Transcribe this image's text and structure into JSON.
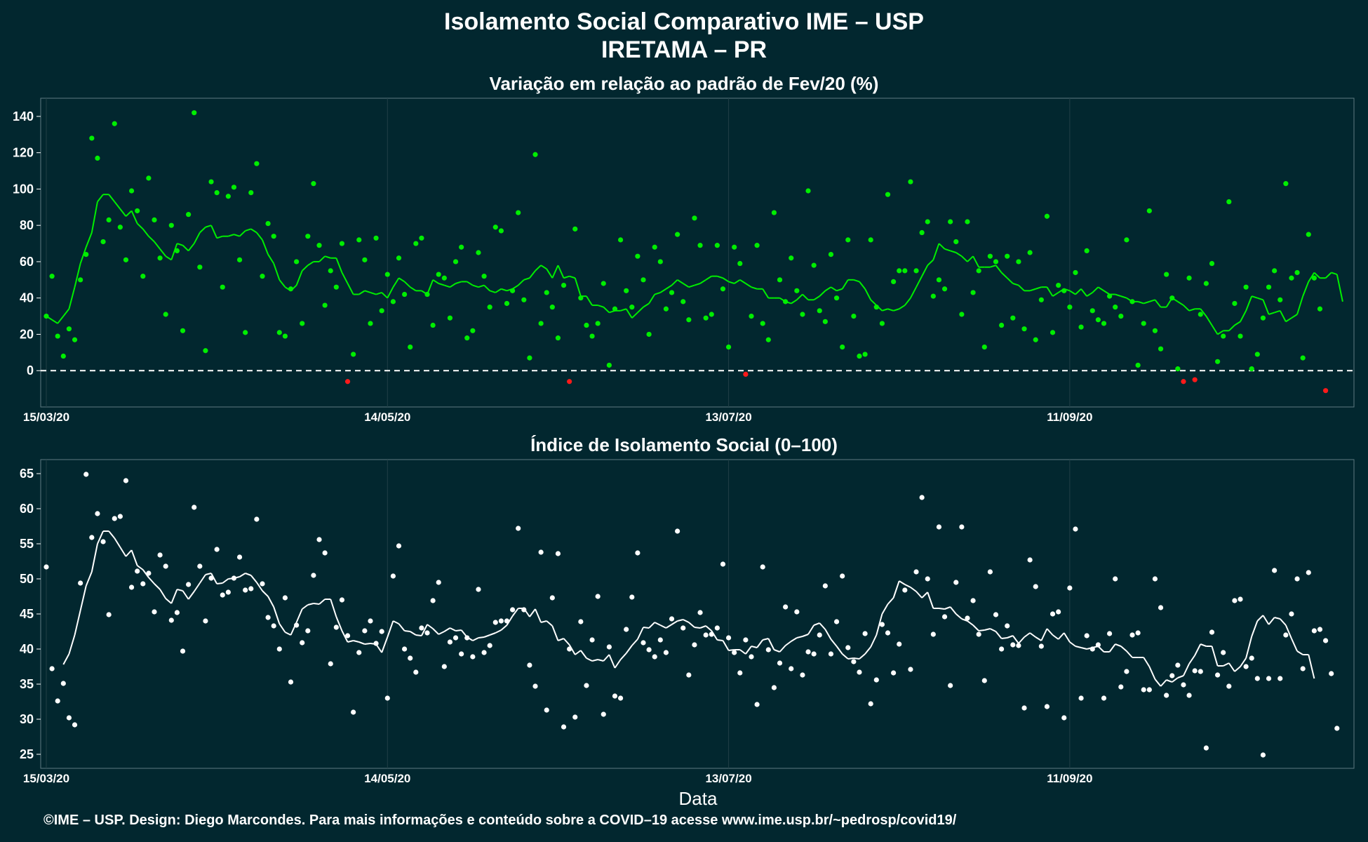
{
  "title": "Isolamento Social Comparativo IME – USP",
  "subtitle": "IRETAMA – PR",
  "xlabel": "Data",
  "footer": "©IME – USP. Design: Diego Marcondes. Para mais informações e conteúdo sobre a COVID–19 acesse www.ime.usp.br/~pedrosp/covid19/",
  "colors": {
    "background": "#02272f",
    "positive": "#00ee00",
    "negative": "#ff1a1a",
    "index": "#ffffff",
    "grid": "#213f46"
  },
  "chart_data": [
    {
      "type": "scatter",
      "title": "Variação em relação ao padrão de Fev/20 (%)",
      "xticks": [
        "15/03/20",
        "14/05/20",
        "13/07/20",
        "11/09/20"
      ],
      "xtick_days": [
        0,
        60,
        120,
        180
      ],
      "xlim": [
        0,
        229
      ],
      "ylim": [
        -20,
        150
      ],
      "yticks": [
        0,
        20,
        40,
        60,
        80,
        100,
        120,
        140
      ],
      "reference_line": 0,
      "points": [
        30,
        52,
        19,
        8,
        23,
        17,
        50,
        64,
        128,
        117,
        71,
        83,
        136,
        79,
        61,
        99,
        88,
        52,
        106,
        83,
        62,
        31,
        80,
        66,
        22,
        86,
        142,
        57,
        11,
        104,
        98,
        46,
        96,
        101,
        61,
        21,
        98,
        114,
        52,
        81,
        74,
        21,
        19,
        45,
        60,
        26,
        74,
        103,
        69,
        36,
        55,
        46,
        70,
        -6,
        9,
        72,
        61,
        26,
        73,
        33,
        53,
        38,
        62,
        42,
        13,
        70,
        73,
        42,
        25,
        53,
        51,
        29,
        60,
        68,
        18,
        22,
        65,
        52,
        35,
        79,
        77,
        37,
        44,
        87,
        39,
        7,
        119,
        26,
        43,
        35,
        18,
        47,
        -6,
        78,
        40,
        25,
        19,
        26,
        48,
        3,
        34,
        72,
        44,
        35,
        63,
        50,
        20,
        68,
        60,
        34,
        43,
        75,
        38,
        28,
        84,
        69,
        29,
        31,
        69,
        45,
        13,
        68,
        59,
        -2,
        30,
        69,
        26,
        17,
        87,
        50,
        38,
        62,
        44,
        31,
        99,
        58,
        33,
        27,
        64,
        40,
        13,
        72,
        30,
        8,
        9,
        72,
        35,
        26,
        97,
        49,
        55,
        55,
        104,
        55,
        76,
        82,
        41,
        50,
        45,
        82,
        71,
        31,
        82,
        43,
        55,
        13,
        63,
        60,
        25,
        63,
        29,
        60,
        23,
        65,
        17,
        39,
        85,
        21,
        47,
        44,
        35,
        54,
        24,
        66,
        33,
        28,
        26,
        41,
        35,
        30,
        72,
        38,
        3,
        26,
        88,
        22,
        12,
        53,
        40,
        1,
        -6,
        51,
        -5,
        31,
        48,
        59,
        5,
        19,
        93,
        37,
        19,
        46,
        1,
        9,
        29,
        46,
        55,
        39,
        103,
        51,
        54,
        7,
        75,
        51,
        34,
        -11
      ],
      "moving_average": [
        30,
        28,
        26,
        30,
        34,
        46,
        59,
        68,
        76,
        93,
        97,
        97,
        93,
        89,
        85,
        88,
        81,
        78,
        74,
        71,
        67,
        63,
        61,
        70,
        69,
        66,
        70,
        76,
        79,
        80,
        73,
        74,
        74,
        75,
        74,
        77,
        78,
        76,
        72,
        64,
        59,
        50,
        46,
        44,
        47,
        55,
        58,
        60,
        60,
        63,
        62,
        62,
        54,
        48,
        42,
        42,
        44,
        43,
        42,
        43,
        40,
        46,
        51,
        49,
        46,
        44,
        44,
        42,
        50,
        48,
        47,
        46,
        48,
        49,
        49,
        47,
        46,
        47,
        44,
        43,
        45,
        44,
        45,
        47,
        50,
        51,
        55,
        58,
        56,
        51,
        58,
        51,
        52,
        51,
        41,
        41,
        36,
        36,
        35,
        32,
        33,
        33,
        34,
        29,
        32,
        35,
        37,
        42,
        43,
        45,
        47,
        50,
        48,
        46,
        47,
        48,
        50,
        52,
        52,
        51,
        49,
        48,
        50,
        48,
        46,
        45,
        45,
        40,
        40,
        40,
        38,
        37,
        39,
        42,
        39,
        39,
        41,
        44,
        46,
        44,
        45,
        50,
        50,
        49,
        45,
        39,
        36,
        33,
        34,
        33,
        34,
        36,
        40,
        46,
        52,
        58,
        61,
        70,
        67,
        66,
        65,
        63,
        60,
        63,
        57,
        57,
        57,
        58,
        54,
        51,
        48,
        47,
        44,
        44,
        45,
        46,
        46,
        41,
        43,
        45,
        44,
        42,
        45,
        41,
        43,
        46,
        44,
        42,
        42,
        41,
        40,
        38,
        38,
        37,
        38,
        39,
        35,
        35,
        40,
        38,
        36,
        33,
        34,
        34,
        30,
        25,
        20,
        22,
        22,
        25,
        27,
        33,
        41,
        40,
        39,
        31,
        32,
        33,
        27,
        29,
        31,
        41,
        49,
        54,
        51,
        51,
        54,
        53,
        38
      ]
    },
    {
      "type": "scatter",
      "title": "Índice de Isolamento Social (0–100)",
      "xticks": [
        "15/03/20",
        "14/05/20",
        "13/07/20",
        "11/09/20"
      ],
      "xtick_days": [
        0,
        60,
        120,
        180
      ],
      "xlim": [
        0,
        229
      ],
      "ylim": [
        23,
        67
      ],
      "yticks": [
        25,
        30,
        35,
        40,
        45,
        50,
        55,
        60,
        65
      ],
      "points": [
        51.7,
        37.2,
        32.6,
        35.1,
        30.2,
        29.2,
        49.4,
        64.9,
        55.9,
        59.3,
        55.3,
        44.9,
        58.6,
        58.9,
        64.0,
        48.8,
        51.1,
        49.3,
        50.8,
        45.3,
        53.4,
        51.8,
        44.1,
        45.2,
        39.7,
        49.2,
        60.2,
        51.8,
        44.0,
        50.1,
        54.2,
        47.7,
        48.1,
        50.1,
        53.1,
        48.4,
        48.6,
        58.5,
        49.3,
        44.5,
        43.3,
        40.0,
        47.3,
        35.3,
        43.4,
        40.9,
        42.6,
        50.5,
        55.6,
        53.7,
        37.9,
        43.1,
        47.0,
        41.9,
        31.0,
        39.5,
        42.6,
        44.0,
        40.8,
        42.5,
        33.0,
        50.4,
        54.7,
        40.0,
        38.7,
        36.7,
        43.0,
        42.3,
        46.9,
        49.5,
        37.5,
        41.0,
        41.6,
        39.3,
        41.6,
        38.9,
        48.5,
        39.5,
        40.5,
        43.8,
        44.0,
        44.0,
        45.6,
        57.2,
        45.6,
        37.7,
        34.7,
        53.8,
        31.3,
        47.3,
        53.6,
        28.9,
        40.0,
        30.3,
        43.9,
        34.8,
        41.3,
        47.5,
        30.7,
        40.3,
        33.3,
        33.0,
        42.8,
        47.4,
        53.7,
        40.9,
        39.9,
        38.9,
        41.3,
        39.5,
        44.3,
        56.8,
        43.0,
        36.3,
        40.6,
        45.2,
        42.0,
        42.1,
        43.0,
        52.1,
        41.6,
        39.5,
        36.6,
        41.3,
        38.9,
        32.1,
        51.7,
        39.9,
        34.5,
        38.0,
        46.0,
        37.2,
        45.3,
        36.3,
        39.6,
        39.3,
        42.0,
        49.0,
        39.3,
        43.9,
        50.4,
        40.2,
        38.2,
        36.7,
        42.2,
        32.2,
        35.6,
        43.5,
        42.3,
        36.6,
        40.7,
        48.4,
        37.1,
        51.0,
        61.6,
        50.0,
        42.1,
        57.4,
        44.6,
        34.8,
        49.5,
        57.4,
        44.4,
        46.9,
        42.1,
        35.5,
        51.0,
        44.9,
        40.0,
        43.3,
        40.6,
        40.5,
        31.6,
        52.7,
        48.9,
        40.4,
        31.8,
        45.0,
        45.3,
        30.2,
        48.7,
        57.1,
        33.0,
        41.9,
        40.0,
        40.6,
        33.0,
        42.2,
        50.0,
        34.6,
        36.8,
        42.0,
        42.3,
        34.2,
        34.2,
        50.0,
        45.9,
        33.4,
        36.2,
        37.7,
        34.9,
        33.4,
        36.9,
        36.8,
        25.9,
        42.4,
        36.3,
        39.5,
        34.7,
        46.9,
        47.1,
        37.5,
        38.7,
        35.8,
        24.9,
        35.8,
        51.2,
        35.8,
        42.0,
        45.0,
        50.0,
        37.2,
        50.9,
        42.6,
        42.8,
        41.2,
        36.5,
        28.7
      ],
      "moving_average": [
        null,
        null,
        null,
        37.8,
        39.3,
        42.0,
        45.5,
        49.0,
        51.0,
        55.0,
        56.8,
        56.8,
        55.8,
        54.5,
        53.2,
        54.1,
        51.9,
        51.3,
        50.2,
        49.3,
        48.5,
        47.2,
        46.5,
        48.5,
        48.3,
        47.1,
        48.2,
        49.4,
        50.6,
        50.8,
        49.3,
        49.4,
        50.0,
        50.1,
        50.3,
        50.8,
        50.5,
        49.5,
        48.3,
        47.5,
        46.0,
        43.6,
        42.4,
        42.0,
        43.8,
        45.7,
        46.3,
        46.5,
        46.4,
        47.1,
        47.1,
        44.6,
        42.6,
        41.0,
        41.2,
        41.0,
        40.7,
        40.8,
        40.7,
        39.5,
        41.7,
        44.0,
        43.6,
        42.6,
        42.5,
        42.0,
        41.9,
        43.5,
        42.9,
        42.1,
        42.5,
        43.0,
        42.6,
        42.7,
        41.7,
        41.2,
        41.6,
        41.7,
        42.0,
        42.3,
        42.7,
        43.4,
        44.7,
        45.8,
        45.8,
        44.6,
        45.7,
        43.8,
        44.0,
        43.3,
        41.2,
        41.5,
        40.6,
        39.2,
        39.8,
        38.7,
        38.3,
        38.5,
        38.3,
        39.2,
        37.3,
        38.5,
        39.4,
        40.5,
        41.4,
        43.1,
        43.0,
        43.8,
        43.4,
        43.0,
        43.5,
        44.0,
        44.2,
        43.8,
        43.1,
        43.0,
        43.3,
        42.6,
        41.3,
        41.2,
        39.8,
        39.9,
        39.9,
        39.3,
        40.4,
        40.2,
        41.3,
        41.5,
        39.9,
        39.6,
        40.5,
        41.1,
        41.6,
        41.8,
        42.1,
        43.4,
        43.7,
        42.8,
        41.4,
        40.4,
        39.3,
        38.6,
        38.7,
        38.6,
        39.3,
        40.3,
        42.0,
        45.0,
        46.4,
        47.3,
        49.7,
        49.2,
        48.8,
        48.2,
        47.3,
        48.1,
        45.8,
        45.8,
        45.7,
        46.0,
        45.0,
        44.3,
        44.0,
        43.4,
        42.6,
        42.7,
        42.9,
        42.5,
        41.5,
        41.6,
        41.9,
        40.8,
        41.7,
        42.3,
        41.7,
        41.2,
        42.9,
        42.0,
        41.4,
        42.3,
        41.0,
        40.4,
        40.2,
        40.0,
        40.2,
        40.4,
        39.6,
        39.6,
        40.7,
        40.4,
        39.7,
        38.8,
        38.8,
        38.8,
        37.5,
        35.7,
        34.7,
        35.6,
        35.3,
        35.9,
        36.2,
        37.9,
        39.1,
        40.7,
        40.4,
        40.4,
        37.6,
        37.6,
        38.0,
        36.8,
        37.5,
        38.7,
        41.8,
        44.0,
        44.8,
        43.5,
        44.5,
        44.3,
        43.4,
        41.5,
        39.7,
        39.2,
        39.2,
        35.8
      ]
    }
  ]
}
